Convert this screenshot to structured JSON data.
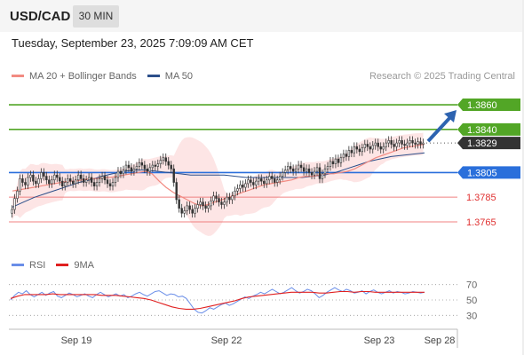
{
  "header": {
    "symbol": "USD/CAD",
    "timeframe": "30 MIN"
  },
  "timestamp": "Tuesday, September 23, 2025 7:09:09 AM CET",
  "legend": {
    "ma20_label": "MA 20 + Bollinger Bands",
    "ma50_label": "MA 50",
    "credit": "Research © 2025 Trading Central"
  },
  "legend_rsi": {
    "rsi_label": "RSI",
    "ma9_label": "9MA"
  },
  "colors": {
    "green_level": "#52a626",
    "blue_level": "#2a6fdb",
    "red_level": "#f08080",
    "candle": "#333333",
    "ma20": "#f28b82",
    "ma50": "#2c4f8a",
    "bband_fill": "#fde1e1",
    "current_price": "#333333",
    "arrow": "#2d63b0",
    "rsi": "#6a8ee8",
    "rsi_ma": "#e02020"
  },
  "chart_data": [
    {
      "type": "candlestick",
      "title": "USD/CAD",
      "ylim": [
        1.3752,
        1.3873
      ],
      "x_ticks": [
        "Sep 19",
        "Sep 22",
        "Sep 23",
        "Sep 28"
      ],
      "current_price": 1.3829,
      "levels": [
        {
          "value": 1.386,
          "label": "1.3860",
          "kind": "resistance"
        },
        {
          "value": 1.384,
          "label": "1.3840",
          "kind": "resistance"
        },
        {
          "value": 1.3805,
          "label": "1.3805",
          "kind": "pivot"
        },
        {
          "value": 1.3785,
          "label": "1.3785",
          "kind": "support"
        },
        {
          "value": 1.3765,
          "label": "1.3765",
          "kind": "support"
        }
      ],
      "closes": [
        1.3775,
        1.3784,
        1.379,
        1.38,
        1.3797,
        1.3795,
        1.3801,
        1.3803,
        1.3798,
        1.3796,
        1.38,
        1.3805,
        1.3802,
        1.3799,
        1.3796,
        1.3799,
        1.3803,
        1.3801,
        1.3798,
        1.3794,
        1.3797,
        1.38,
        1.3798,
        1.3796,
        1.3799,
        1.3803,
        1.38,
        1.3797,
        1.3799,
        1.3801,
        1.3797,
        1.3794,
        1.3797,
        1.38,
        1.3802,
        1.3799,
        1.3796,
        1.3794,
        1.3797,
        1.3801,
        1.3806,
        1.3804,
        1.3807,
        1.3811,
        1.3809,
        1.3806,
        1.3808,
        1.381,
        1.3813,
        1.3811,
        1.3808,
        1.3806,
        1.3809,
        1.3811,
        1.381,
        1.3812,
        1.3815,
        1.3817,
        1.3814,
        1.3811,
        1.3808,
        1.3797,
        1.3783,
        1.3776,
        1.3772,
        1.3774,
        1.3778,
        1.3775,
        1.3772,
        1.3776,
        1.3779,
        1.3781,
        1.3778,
        1.3776,
        1.3778,
        1.3782,
        1.3786,
        1.3784,
        1.3781,
        1.3779,
        1.3781,
        1.3785,
        1.3783,
        1.3786,
        1.379,
        1.3792,
        1.3795,
        1.3793,
        1.3796,
        1.3799,
        1.3797,
        1.3795,
        1.3798,
        1.38,
        1.3798,
        1.3796,
        1.3799,
        1.3802,
        1.38,
        1.3797,
        1.3799,
        1.3802,
        1.3805,
        1.3807,
        1.381,
        1.3808,
        1.3806,
        1.3808,
        1.3811,
        1.3809,
        1.3806,
        1.3808,
        1.3805,
        1.3803,
        1.3806,
        1.3809,
        1.38,
        1.3804,
        1.3808,
        1.381,
        1.3814,
        1.3812,
        1.3816,
        1.3813,
        1.3817,
        1.382,
        1.3818,
        1.3823,
        1.3821,
        1.3826,
        1.3824,
        1.3822,
        1.3825,
        1.3828,
        1.3826,
        1.3824,
        1.3827,
        1.3829,
        1.3826,
        1.3824,
        1.3826,
        1.3829,
        1.3831,
        1.3828,
        1.3826,
        1.3829,
        1.3831,
        1.3828,
        1.3827,
        1.3829,
        1.3831,
        1.3829,
        1.3828,
        1.383,
        1.3828,
        1.3829
      ],
      "ma20": [
        1.379,
        1.3791,
        1.3792,
        1.3793,
        1.3794,
        1.3795,
        1.3796,
        1.3797,
        1.3798,
        1.3798,
        1.3799,
        1.38,
        1.38,
        1.3801,
        1.3801,
        1.3802,
        1.3803,
        1.3804,
        1.3805,
        1.3806,
        1.3804,
        1.3798,
        1.3793,
        1.3789,
        1.3786,
        1.3783,
        1.378,
        1.3778,
        1.3779,
        1.3781,
        1.3783,
        1.3785,
        1.3787,
        1.3789,
        1.3791,
        1.3793,
        1.3795,
        1.3796,
        1.3797,
        1.3798,
        1.3799,
        1.3801,
        1.3802,
        1.3802,
        1.3803,
        1.3804,
        1.3804,
        1.3805,
        1.3806,
        1.3808,
        1.3811,
        1.3814,
        1.3817,
        1.3819,
        1.3821,
        1.3823,
        1.3825,
        1.3826,
        1.3827,
        1.3828
      ],
      "ma50": [
        1.3777,
        1.3781,
        1.3785,
        1.3788,
        1.3791,
        1.3794,
        1.3797,
        1.3799,
        1.3802,
        1.3804,
        1.3806,
        1.3807,
        1.3807,
        1.3806,
        1.3805,
        1.3804,
        1.3803,
        1.3803,
        1.3803,
        1.3803,
        1.3802,
        1.3801,
        1.3801,
        1.3801,
        1.3801,
        1.3801,
        1.3801,
        1.3802,
        1.3803,
        1.3805,
        1.3808,
        1.3811,
        1.3814,
        1.3816,
        1.3818,
        1.3819,
        1.382,
        1.3821
      ]
    },
    {
      "type": "line",
      "title": "RSI",
      "ylim": [
        20,
        80
      ],
      "y_ticks": [
        70,
        50,
        30
      ],
      "series": [
        {
          "name": "RSI",
          "values": [
            50,
            56,
            60,
            58,
            62,
            57,
            54,
            57,
            60,
            56,
            59,
            61,
            55,
            53,
            56,
            59,
            57,
            54,
            56,
            58,
            55,
            53,
            57,
            60,
            57,
            54,
            56,
            58,
            55,
            57,
            53,
            55,
            58,
            60,
            57,
            55,
            58,
            61,
            62,
            59,
            56,
            58,
            57,
            54,
            55,
            52,
            45,
            38,
            34,
            33,
            36,
            40,
            38,
            41,
            44,
            46,
            43,
            45,
            48,
            51,
            54,
            52,
            55,
            57,
            60,
            58,
            61,
            64,
            61,
            58,
            60,
            63,
            66,
            62,
            59,
            61,
            64,
            62,
            58,
            53,
            56,
            60,
            63,
            66,
            63,
            61,
            64,
            62,
            59,
            60,
            62,
            58,
            61,
            63,
            60,
            58,
            60,
            62,
            59,
            61,
            60,
            58,
            59,
            61,
            60,
            59,
            60
          ]
        },
        {
          "name": "9MA",
          "values": [
            52,
            55,
            57,
            57,
            57,
            57,
            58,
            57,
            57,
            57,
            57,
            57,
            57,
            56,
            56,
            56,
            55,
            54,
            53,
            52,
            50,
            47,
            44,
            41,
            39,
            38,
            38,
            39,
            41,
            43,
            45,
            47,
            49,
            52,
            54,
            55,
            56,
            57,
            58,
            59,
            60,
            60,
            60,
            60,
            59,
            59,
            60,
            61,
            61,
            60,
            61,
            61,
            60,
            60,
            60,
            60,
            60,
            60,
            60,
            60
          ]
        }
      ]
    }
  ]
}
